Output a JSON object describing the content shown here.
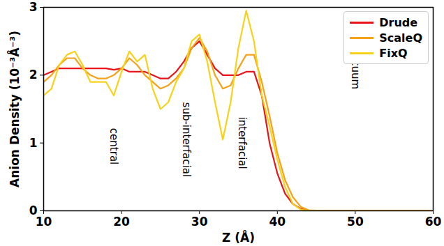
{
  "chart_data": {
    "type": "line",
    "xlabel": "Z (Å)",
    "ylabel": "Anion Density (10⁻³Å⁻³)",
    "x": [
      10,
      11,
      12,
      13,
      14,
      15,
      16,
      17,
      18,
      19,
      20,
      21,
      22,
      23,
      24,
      25,
      26,
      27,
      28,
      29,
      30,
      31,
      32,
      33,
      34,
      35,
      36,
      37,
      38,
      39,
      40,
      41,
      42,
      43,
      44,
      46,
      50,
      55,
      60
    ],
    "series": [
      {
        "name": "Drude",
        "color": "#e8141a",
        "values": [
          2.0,
          2.05,
          2.1,
          2.1,
          2.1,
          2.1,
          2.1,
          2.1,
          2.1,
          2.08,
          2.1,
          2.05,
          2.05,
          2.05,
          2.0,
          1.95,
          1.95,
          2.05,
          2.2,
          2.4,
          2.5,
          2.3,
          2.1,
          2.0,
          2.0,
          2.0,
          2.05,
          2.05,
          1.7,
          1.0,
          0.55,
          0.25,
          0.1,
          0.03,
          0,
          0,
          0,
          0,
          0
        ]
      },
      {
        "name": "ScaleQ",
        "color": "#f5a21b",
        "values": [
          1.9,
          2.0,
          2.15,
          2.25,
          2.25,
          2.1,
          2.0,
          1.95,
          1.95,
          2.0,
          2.1,
          2.25,
          2.15,
          2.0,
          1.9,
          1.8,
          1.85,
          1.95,
          2.1,
          2.4,
          2.55,
          2.35,
          2.0,
          1.8,
          1.85,
          2.1,
          2.3,
          2.3,
          1.9,
          1.4,
          0.85,
          0.45,
          0.2,
          0.06,
          0.01,
          0,
          0,
          0,
          0
        ]
      },
      {
        "name": "FixQ",
        "color": "#f7d21a",
        "values": [
          1.7,
          1.8,
          2.15,
          2.3,
          2.35,
          2.15,
          1.9,
          1.9,
          1.9,
          1.7,
          2.05,
          2.35,
          2.2,
          2.3,
          1.8,
          1.5,
          1.6,
          1.9,
          2.1,
          2.5,
          2.6,
          2.2,
          1.6,
          1.05,
          1.6,
          2.4,
          2.95,
          2.5,
          1.7,
          1.25,
          0.75,
          0.35,
          0.1,
          0.02,
          0,
          0,
          0,
          0,
          0
        ]
      }
    ],
    "xlim": [
      10,
      60
    ],
    "xticks": [
      10,
      20,
      30,
      40,
      50,
      60
    ],
    "ylim": [
      0,
      3
    ],
    "yticks": [
      0,
      1,
      2,
      3
    ],
    "grid": false,
    "legend": "upper right",
    "annotations": [
      {
        "text": "central",
        "x": 19,
        "y": 0.95
      },
      {
        "text": "sub-interfacial",
        "x": 28.3,
        "y": 1.05
      },
      {
        "text": "interfacial",
        "x": 35.5,
        "y": 1.0
      },
      {
        "text": "vacuum",
        "x": 50,
        "y": 2.1
      }
    ]
  }
}
